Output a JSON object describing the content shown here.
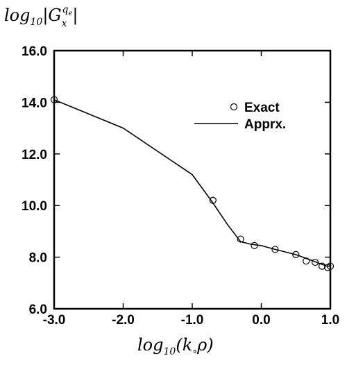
{
  "chart_data": {
    "type": "line",
    "title": "",
    "ylabel": {
      "base": "log",
      "sub": "10",
      "main": "|G",
      "sub_x": "x",
      "sup": "q",
      "sup_sub": "e",
      "close": "|"
    },
    "xlabel": {
      "base": "log",
      "sub": "10",
      "main": "(k",
      "sub_o": "∘",
      "rest": "ρ)"
    },
    "xlim": [
      -3.0,
      1.0
    ],
    "ylim": [
      6.0,
      16.0
    ],
    "xticks": [
      -3.0,
      -2.0,
      -1.0,
      0.0,
      1.0
    ],
    "yticks": [
      6.0,
      8.0,
      10.0,
      12.0,
      14.0,
      16.0
    ],
    "xtick_labels": [
      "-3.0",
      "-2.0",
      "-1.0",
      "0.0",
      "1.0"
    ],
    "ytick_labels": [
      "6.0",
      "8.0",
      "10.0",
      "12.0",
      "14.0",
      "16.0"
    ],
    "grid": false,
    "legend_position": "top-right",
    "series": [
      {
        "name": "Exact",
        "style": "markers",
        "marker": "open-circle",
        "x": [
          -3.0,
          -0.7,
          -0.3,
          -0.1,
          0.2,
          0.5,
          0.65,
          0.78,
          0.88,
          0.96,
          1.0
        ],
        "y": [
          14.1,
          10.2,
          8.7,
          8.45,
          8.3,
          8.1,
          7.85,
          7.8,
          7.65,
          7.6,
          7.65
        ]
      },
      {
        "name": "Apprx.",
        "style": "line",
        "x": [
          -3.0,
          -2.0,
          -1.0,
          -0.7,
          -0.5,
          -0.3,
          -0.15,
          0.0,
          0.2,
          0.5,
          0.7,
          0.85,
          0.95,
          1.0
        ],
        "y": [
          14.1,
          13.0,
          11.2,
          10.1,
          9.3,
          8.6,
          8.5,
          8.45,
          8.3,
          8.1,
          7.9,
          7.75,
          7.65,
          7.65
        ]
      }
    ]
  }
}
